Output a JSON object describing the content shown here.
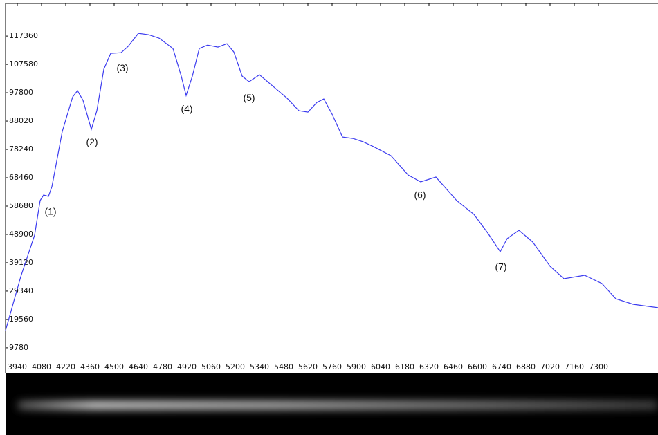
{
  "chart_data": {
    "type": "line",
    "x": [
      3872,
      3960,
      4040,
      4072,
      4092,
      4120,
      4140,
      4200,
      4260,
      4288,
      4320,
      4368,
      4400,
      4440,
      4480,
      4540,
      4580,
      4640,
      4700,
      4760,
      4840,
      4888,
      4916,
      4952,
      4992,
      5040,
      5100,
      5152,
      5192,
      5240,
      5280,
      5340,
      5420,
      5500,
      5568,
      5620,
      5672,
      5712,
      5760,
      5820,
      5880,
      5940,
      6000,
      6100,
      6200,
      6272,
      6360,
      6480,
      6580,
      6660,
      6732,
      6772,
      6840,
      6920,
      7020,
      7100,
      7220,
      7320,
      7400,
      7500,
      7644
    ],
    "series": [
      {
        "color": "#3b3bef",
        "values": [
          15740,
          34340,
          48650,
          60580,
          62490,
          62010,
          65350,
          84430,
          96350,
          98500,
          95160,
          85150,
          91590,
          105890,
          111380,
          111620,
          113760,
          118300,
          117820,
          116630,
          113050,
          103510,
          96830,
          103510,
          113050,
          114240,
          113530,
          114720,
          111850,
          103510,
          101600,
          103990,
          99930,
          95880,
          91590,
          91110,
          94450,
          95640,
          90390,
          82520,
          82040,
          80850,
          79180,
          76080,
          69400,
          67020,
          68690,
          60580,
          55810,
          49370,
          42930,
          47460,
          50320,
          46270,
          37920,
          33630,
          34820,
          31960,
          26710,
          24800,
          23610
        ]
      }
    ],
    "annotations": [
      {
        "text": "(1)",
        "x": 4132,
        "y": 56520
      },
      {
        "text": "(2)",
        "x": 4372,
        "y": 80610
      },
      {
        "text": "(3)",
        "x": 4548,
        "y": 106130
      },
      {
        "text": "(4)",
        "x": 4920,
        "y": 92060
      },
      {
        "text": "(5)",
        "x": 5280,
        "y": 95880
      },
      {
        "text": "(6)",
        "x": 6268,
        "y": 62250
      },
      {
        "text": "(7)",
        "x": 6736,
        "y": 37440
      }
    ],
    "xlim": [
      3872,
      7644
    ],
    "ylim": [
      5700,
      128600
    ],
    "xticks": [
      3940,
      4080,
      4220,
      4360,
      4500,
      4640,
      4780,
      4920,
      5060,
      5200,
      5340,
      5480,
      5620,
      5760,
      5900,
      6040,
      6180,
      6320,
      6460,
      6600,
      6740,
      6880,
      7020,
      7160,
      7300
    ],
    "yticks": [
      9780,
      19560,
      29340,
      39120,
      48900,
      58680,
      68460,
      78240,
      88020,
      97800,
      107580,
      117360
    ]
  }
}
